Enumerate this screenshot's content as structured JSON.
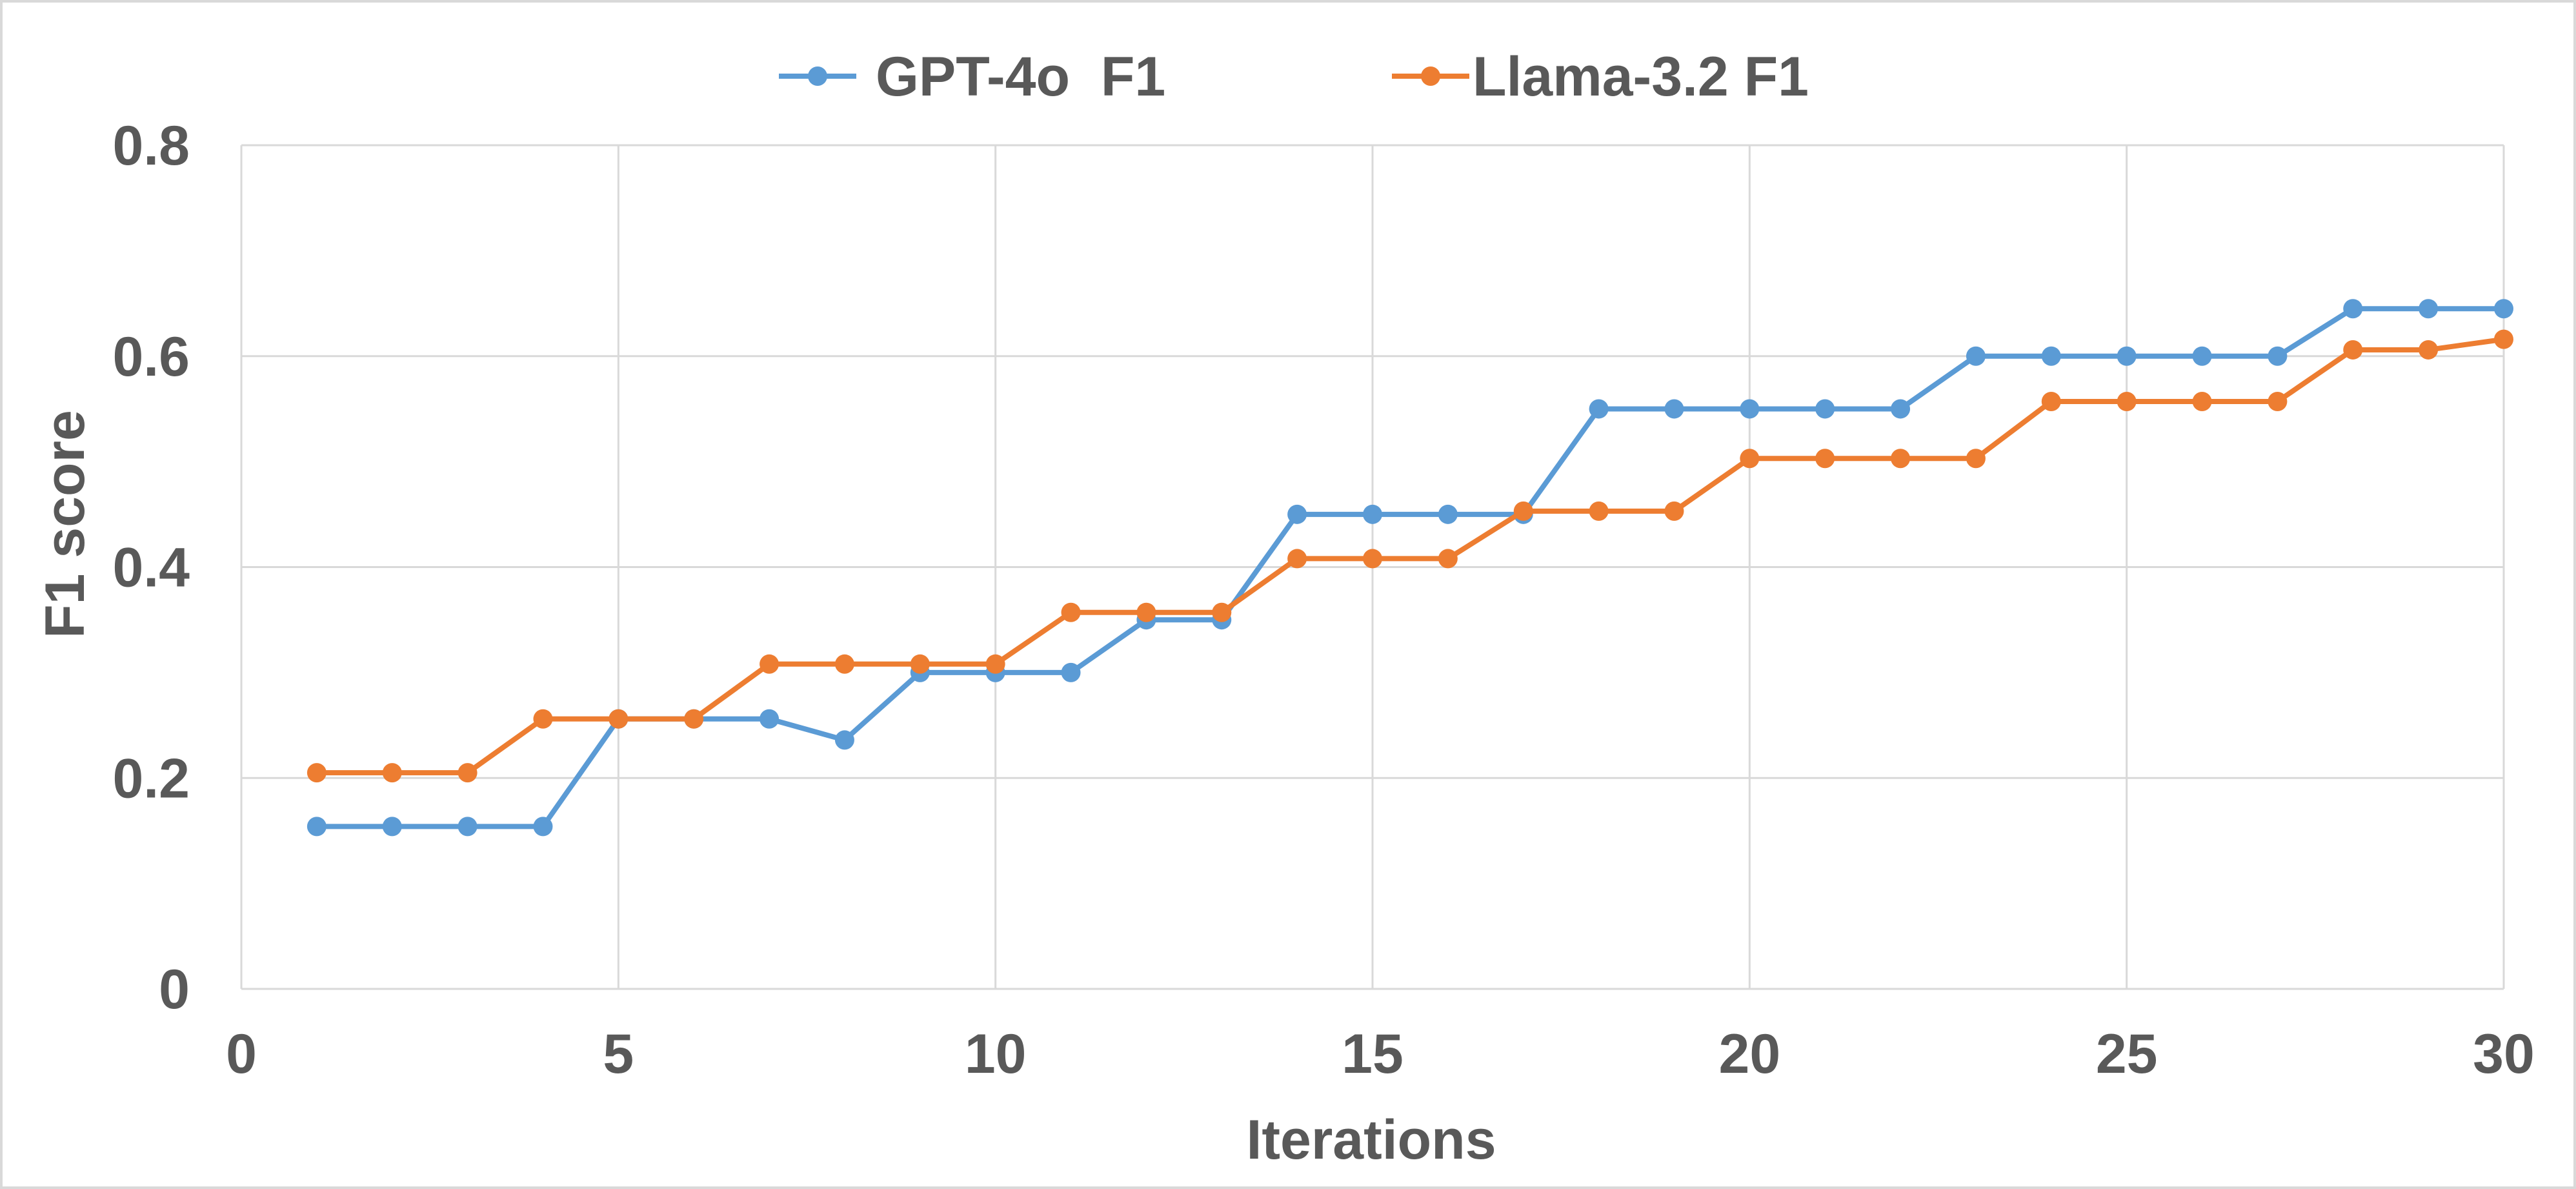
{
  "chart_data": {
    "type": "line",
    "title": "",
    "xlabel": "Iterations",
    "ylabel": "F1 score",
    "xlim": [
      0,
      30
    ],
    "ylim": [
      0,
      0.8
    ],
    "xticks": [
      0,
      5,
      10,
      15,
      20,
      25,
      30
    ],
    "yticks": [
      0,
      0.2,
      0.4,
      0.6,
      0.8
    ],
    "xtick_labels": [
      "0",
      "5",
      "10",
      "15",
      "20",
      "25",
      "30"
    ],
    "ytick_labels": [
      "0",
      "0.2",
      "0.4",
      "0.6",
      "0.8"
    ],
    "grid": true,
    "legend_position": "top-center",
    "x": [
      1,
      2,
      3,
      4,
      5,
      6,
      7,
      8,
      9,
      10,
      11,
      12,
      13,
      14,
      15,
      16,
      17,
      18,
      19,
      20,
      21,
      22,
      23,
      24,
      25,
      26,
      27,
      28,
      29,
      30
    ],
    "series": [
      {
        "name": "GPT-4o  F1",
        "color": "#5B9BD5",
        "values": [
          0.154,
          0.154,
          0.154,
          0.154,
          0.256,
          0.256,
          0.256,
          0.236,
          0.3,
          0.3,
          0.3,
          0.35,
          0.35,
          0.45,
          0.45,
          0.45,
          0.45,
          0.55,
          0.55,
          0.55,
          0.55,
          0.55,
          0.6,
          0.6,
          0.6,
          0.6,
          0.6,
          0.645,
          0.645,
          0.645
        ]
      },
      {
        "name": "Llama-3.2 F1",
        "color": "#ED7D31",
        "values": [
          0.205,
          0.205,
          0.205,
          0.256,
          0.256,
          0.256,
          0.308,
          0.308,
          0.308,
          0.308,
          0.357,
          0.357,
          0.357,
          0.408,
          0.408,
          0.408,
          0.453,
          0.453,
          0.453,
          0.503,
          0.503,
          0.503,
          0.503,
          0.557,
          0.557,
          0.557,
          0.557,
          0.606,
          0.606,
          0.616
        ]
      }
    ]
  },
  "colors": {
    "grid": "#d9d9d9",
    "axis_text": "#595959",
    "border": "#d9d9d9"
  }
}
